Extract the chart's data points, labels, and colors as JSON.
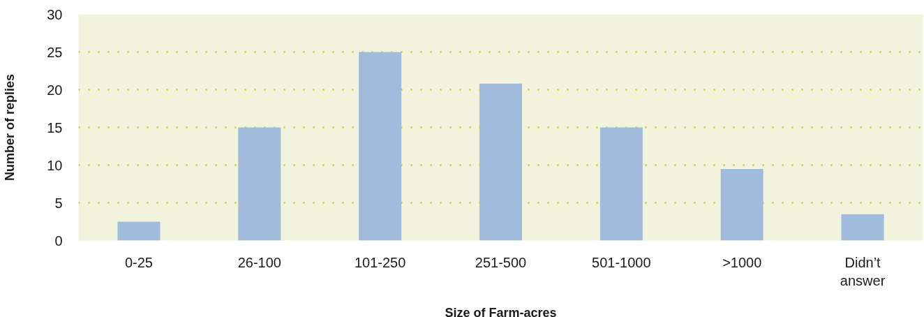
{
  "chart_data": {
    "type": "bar",
    "xlabel": "Size of Farm-acres",
    "ylabel": "Number of replies",
    "categories": [
      "0-25",
      "26-100",
      "101-250",
      "251-500",
      "501-1000",
      ">1000",
      "Didn’t answer"
    ],
    "values": [
      2.5,
      15,
      25,
      20.8,
      15,
      9.5,
      3.5
    ],
    "color": "#a0bbdb",
    "ylim": [
      0,
      30
    ],
    "yticks": [
      0,
      5,
      10,
      15,
      20,
      25,
      30
    ],
    "grid": "y"
  }
}
